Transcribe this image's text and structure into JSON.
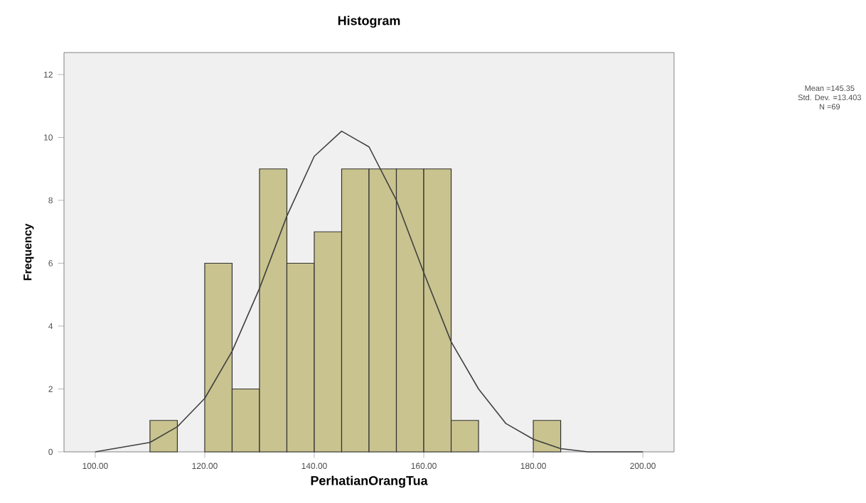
{
  "chart_data": {
    "type": "histogram",
    "title": "Histogram",
    "xlabel": "PerhatianOrangTua",
    "ylabel": "Frequency",
    "bins": [
      110,
      115,
      120,
      125,
      130,
      135,
      140,
      145,
      150,
      155,
      160,
      165,
      170,
      175,
      180,
      185
    ],
    "values": [
      1,
      0,
      6,
      2,
      9,
      6,
      7,
      9,
      9,
      9,
      9,
      1,
      0,
      0,
      1
    ],
    "color": "#c9c38f",
    "series": [
      {
        "type": "line",
        "color": "#404040",
        "x": [
          100,
          110,
          115,
          120,
          125,
          130,
          135,
          140,
          145,
          150,
          155,
          160,
          165,
          170,
          175,
          180,
          185,
          190,
          200
        ],
        "values": [
          0.0,
          0.3,
          0.8,
          1.7,
          3.2,
          5.2,
          7.5,
          9.4,
          10.2,
          9.7,
          8.0,
          5.7,
          3.5,
          2.0,
          0.9,
          0.4,
          0.1,
          0.0,
          0.0
        ]
      }
    ],
    "xlim": [
      94.3,
      205.7
    ],
    "ylim": [
      0,
      12.7
    ],
    "xticks": [
      {
        "value": 100,
        "label": "100.00"
      },
      {
        "value": 120,
        "label": "120.00"
      },
      {
        "value": 140,
        "label": "140.00"
      },
      {
        "value": 160,
        "label": "160.00"
      },
      {
        "value": 180,
        "label": "180.00"
      },
      {
        "value": 200,
        "label": "200.00"
      }
    ],
    "yticks": [
      0,
      2,
      4,
      6,
      8,
      10,
      12
    ],
    "annotations": [
      "Mean =145.35",
      "Std. Dev. =13.403",
      "N =69"
    ]
  }
}
